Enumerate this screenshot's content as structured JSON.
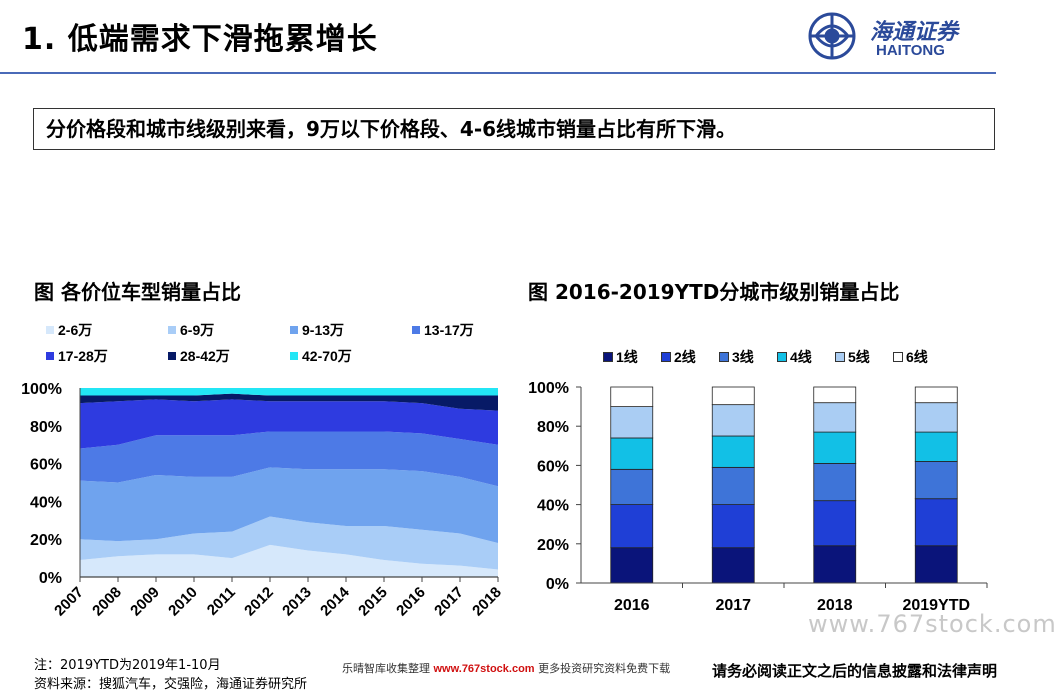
{
  "header": {
    "title": "1. 低端需求下滑拖累增长",
    "logo_cn": "海通证券",
    "logo_en": "HAITONG"
  },
  "callout": "分价格段和城市线级别来看，9万以下价格段、4-6线城市销量占比有所下滑。",
  "charts": {
    "left_title": "图 各价位车型销量占比",
    "right_title": "图 2016-2019YTD分城市级别销量占比"
  },
  "chart_data": [
    {
      "type": "area",
      "stacked": true,
      "categories": [
        "2007",
        "2008",
        "2009",
        "2010",
        "2011",
        "2012",
        "2013",
        "2014",
        "2015",
        "2016",
        "2017",
        "2018"
      ],
      "ylim": [
        0,
        100
      ],
      "yticks": [
        "0%",
        "20%",
        "40%",
        "60%",
        "80%",
        "100%"
      ],
      "legend_position": "top",
      "series": [
        {
          "name": "2-6万",
          "color": "#d6e8fb",
          "values": [
            9,
            11,
            12,
            12,
            10,
            17,
            14,
            12,
            9,
            7,
            6,
            4
          ]
        },
        {
          "name": "6-9万",
          "color": "#a9cdf7",
          "values": [
            11,
            8,
            8,
            11,
            14,
            15,
            15,
            15,
            18,
            18,
            17,
            14
          ]
        },
        {
          "name": "9-13万",
          "color": "#6fa3ee",
          "values": [
            31,
            31,
            34,
            30,
            29,
            26,
            28,
            30,
            30,
            31,
            30,
            30
          ]
        },
        {
          "name": "13-17万",
          "color": "#4d7ae6",
          "values": [
            17,
            20,
            21,
            22,
            22,
            19,
            20,
            20,
            20,
            20,
            20,
            22
          ]
        },
        {
          "name": "17-28万",
          "color": "#2e3be0",
          "values": [
            24,
            23,
            19,
            18,
            19,
            16,
            16,
            16,
            16,
            16,
            16,
            18
          ]
        },
        {
          "name": "28-42万",
          "color": "#071a66",
          "values": [
            4,
            3,
            2,
            3,
            3,
            3,
            3,
            3,
            3,
            4,
            7,
            8
          ]
        },
        {
          "name": "42-70万",
          "color": "#23e6f5",
          "values": [
            4,
            4,
            4,
            4,
            3,
            4,
            4,
            4,
            4,
            4,
            4,
            4
          ]
        }
      ]
    },
    {
      "type": "bar",
      "stacked": true,
      "categories": [
        "2016",
        "2017",
        "2018",
        "2019YTD"
      ],
      "ylim": [
        0,
        100
      ],
      "yticks": [
        "0%",
        "20%",
        "40%",
        "60%",
        "80%",
        "100%"
      ],
      "legend_position": "top",
      "series": [
        {
          "name": "1线",
          "color": "#0a147a",
          "values": [
            18,
            18,
            19,
            19
          ]
        },
        {
          "name": "2线",
          "color": "#1f3fd6",
          "values": [
            22,
            22,
            23,
            24
          ]
        },
        {
          "name": "3线",
          "color": "#3e74d8",
          "values": [
            18,
            19,
            19,
            19
          ]
        },
        {
          "name": "4线",
          "color": "#12c0e6",
          "values": [
            16,
            16,
            16,
            15
          ]
        },
        {
          "name": "5线",
          "color": "#aacdf3",
          "values": [
            16,
            16,
            15,
            15
          ]
        },
        {
          "name": "6线",
          "color": "#ffffff",
          "values": [
            10,
            9,
            8,
            8
          ]
        }
      ]
    }
  ],
  "notes": {
    "note": "注：2019YTD为2019年1-10月",
    "source": "资料来源：搜狐汽车，交强险，海通证券研究所"
  },
  "footer": {
    "mid_prefix": "乐晴智库收集整理",
    "mid_url": "www.767stock.com",
    "mid_suffix": "更多投资研究资料免费下载",
    "right": "请务必阅读正文之后的信息披露和法律声明",
    "watermark": "www.767stock.com"
  }
}
